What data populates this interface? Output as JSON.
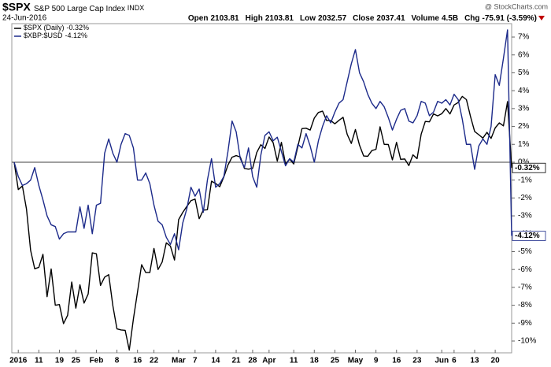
{
  "chart_data": {
    "type": "line",
    "title": "$SPX",
    "subtitle": "S&P 500 Large Cap Index",
    "exchange": "INDX",
    "date": "24-Jun-2016",
    "watermark": "@ StockCharts.com",
    "stats": [
      {
        "label": "Open",
        "value": "2103.81"
      },
      {
        "label": "High",
        "value": "2103.81"
      },
      {
        "label": "Low",
        "value": "2032.57"
      },
      {
        "label": "Close",
        "value": "2037.41"
      },
      {
        "label": "Volume",
        "value": "4.5B"
      },
      {
        "label": "Chg",
        "value": "-75.91 (-3.59%)"
      }
    ],
    "categories": [
      null,
      "2016",
      null,
      null,
      null,
      null,
      "11",
      null,
      null,
      null,
      null,
      "19",
      null,
      null,
      null,
      "25",
      null,
      null,
      null,
      null,
      "Feb",
      null,
      null,
      null,
      null,
      "8",
      null,
      null,
      null,
      null,
      "16",
      null,
      null,
      null,
      "22",
      null,
      null,
      null,
      null,
      null,
      "Mar",
      null,
      null,
      null,
      "7",
      null,
      null,
      null,
      null,
      "14",
      null,
      null,
      null,
      null,
      "21",
      null,
      null,
      null,
      "28",
      null,
      null,
      null,
      "Apr",
      null,
      null,
      null,
      null,
      null,
      "11",
      null,
      null,
      null,
      null,
      "18",
      null,
      null,
      null,
      null,
      "25",
      null,
      null,
      null,
      null,
      "May",
      null,
      null,
      null,
      null,
      "9",
      null,
      null,
      null,
      null,
      "16",
      null,
      null,
      null,
      null,
      "23",
      null,
      null,
      null,
      null,
      null,
      "Jun",
      null,
      null,
      "6",
      null,
      null,
      null,
      null,
      "13",
      null,
      null,
      null,
      null,
      "20",
      null,
      null,
      null,
      null
    ],
    "series": [
      {
        "name": "$SPX (Daily)",
        "last_label": "-0.32%",
        "color": "#000000",
        "values": [
          0,
          -1.53,
          -1.33,
          -2.63,
          -4.93,
          -5.96,
          -5.88,
          -5.15,
          -7.52,
          -5.97,
          -8.0,
          -7.96,
          -9.03,
          -8.56,
          -6.7,
          -8.16,
          -6.86,
          -7.88,
          -7.37,
          -5.07,
          -5.12,
          -6.89,
          -6.43,
          -6.29,
          -8.02,
          -9.32,
          -9.38,
          -9.4,
          -10.51,
          -8.77,
          -7.26,
          -5.73,
          -6.17,
          -6.17,
          -4.82,
          -6.0,
          -5.58,
          -4.51,
          -4.69,
          -5.47,
          -3.21,
          -2.81,
          -2.47,
          -2.15,
          -2.06,
          -3.16,
          -2.68,
          -2.66,
          -1.06,
          -1.19,
          -1.37,
          -0.82,
          -0.16,
          0.28,
          0.37,
          0.29,
          -0.35,
          -0.39,
          -0.34,
          0.54,
          0.98,
          0.77,
          1.41,
          1.09,
          0.06,
          1.11,
          -0.1,
          0.18,
          -0.1,
          0.87,
          1.88,
          1.9,
          1.8,
          2.47,
          2.78,
          2.86,
          2.33,
          2.33,
          2.15,
          2.34,
          2.51,
          1.56,
          1.05,
          1.83,
          0.95,
          0.35,
          0.33,
          0.65,
          0.72,
          1.98,
          1.0,
          0.99,
          0.13,
          1.11,
          0.16,
          0.18,
          -0.19,
          0.41,
          0.2,
          1.57,
          2.28,
          2.26,
          2.7,
          2.59,
          2.71,
          3.0,
          2.7,
          3.2,
          3.34,
          3.68,
          3.5,
          2.55,
          1.72,
          1.54,
          1.35,
          1.67,
          1.33,
          1.92,
          2.2,
          2.03,
          3.39,
          -0.32
        ]
      },
      {
        "name": "$XBP:$USD",
        "last_label": "-4.12%",
        "color": "#1c2a8a",
        "values": [
          0,
          -0.8,
          -1.3,
          -1.2,
          -1.0,
          -0.3,
          -1.3,
          -2.1,
          -3.0,
          -3.5,
          -3.6,
          -4.3,
          -4.0,
          -3.9,
          -3.9,
          -3.9,
          -2.5,
          -3.7,
          -2.4,
          -4.0,
          -2.4,
          -2.3,
          0.5,
          1.3,
          0.5,
          0.0,
          1.0,
          1.6,
          1.5,
          0.8,
          -1.0,
          -1.0,
          -0.6,
          -1.2,
          -2.4,
          -3.3,
          -3.5,
          -4.2,
          -4.6,
          -4.0,
          -4.9,
          -3.4,
          -2.6,
          -1.4,
          -1.9,
          -1.5,
          -2.8,
          -1.0,
          0.2,
          -1.4,
          -1.2,
          -0.8,
          0.6,
          2.3,
          1.7,
          0.2,
          -0.3,
          0.8,
          -0.8,
          -1.4,
          0.4,
          1.5,
          1.7,
          1.2,
          1.4,
          0.6,
          -0.2,
          0.2,
          0.0,
          1.0,
          0.8,
          1.6,
          0.9,
          0.0,
          1.2,
          2.0,
          2.6,
          2.2,
          2.8,
          3.3,
          3.5,
          4.5,
          5.5,
          6.3,
          5.0,
          4.5,
          3.8,
          3.3,
          3.0,
          3.4,
          3.1,
          2.5,
          1.8,
          2.4,
          2.9,
          3.0,
          2.3,
          2.2,
          2.6,
          3.4,
          3.3,
          2.6,
          2.8,
          3.4,
          3.3,
          3.5,
          3.2,
          3.8,
          3.5,
          2.4,
          1.0,
          1.0,
          -0.4,
          0.9,
          1.3,
          1.0,
          2.0,
          4.9,
          4.3,
          5.8,
          7.4,
          -4.12
        ]
      }
    ],
    "ylim": [
      -10.66,
      7.75
    ],
    "yticks": [
      {
        "value": -10,
        "label": "-10%"
      },
      {
        "value": -9,
        "label": "-9%"
      },
      {
        "value": -8,
        "label": "-8%"
      },
      {
        "value": -7,
        "label": "-7%"
      },
      {
        "value": -6,
        "label": "-6%"
      },
      {
        "value": -5,
        "label": "-5%"
      },
      {
        "value": -4,
        "label": "-4%"
      },
      {
        "value": -3,
        "label": "-3%"
      },
      {
        "value": -2,
        "label": "-2%"
      },
      {
        "value": -1,
        "label": "-1%"
      },
      {
        "value": 0,
        "label": "0%"
      },
      {
        "value": 1,
        "label": "1%"
      },
      {
        "value": 2,
        "label": "2%"
      },
      {
        "value": 3,
        "label": "3%"
      },
      {
        "value": 4,
        "label": "4%"
      },
      {
        "value": 5,
        "label": "5%"
      },
      {
        "value": 6,
        "label": "6%"
      },
      {
        "value": 7,
        "label": "7%"
      }
    ],
    "zero_line": true,
    "legend": "top-left"
  }
}
